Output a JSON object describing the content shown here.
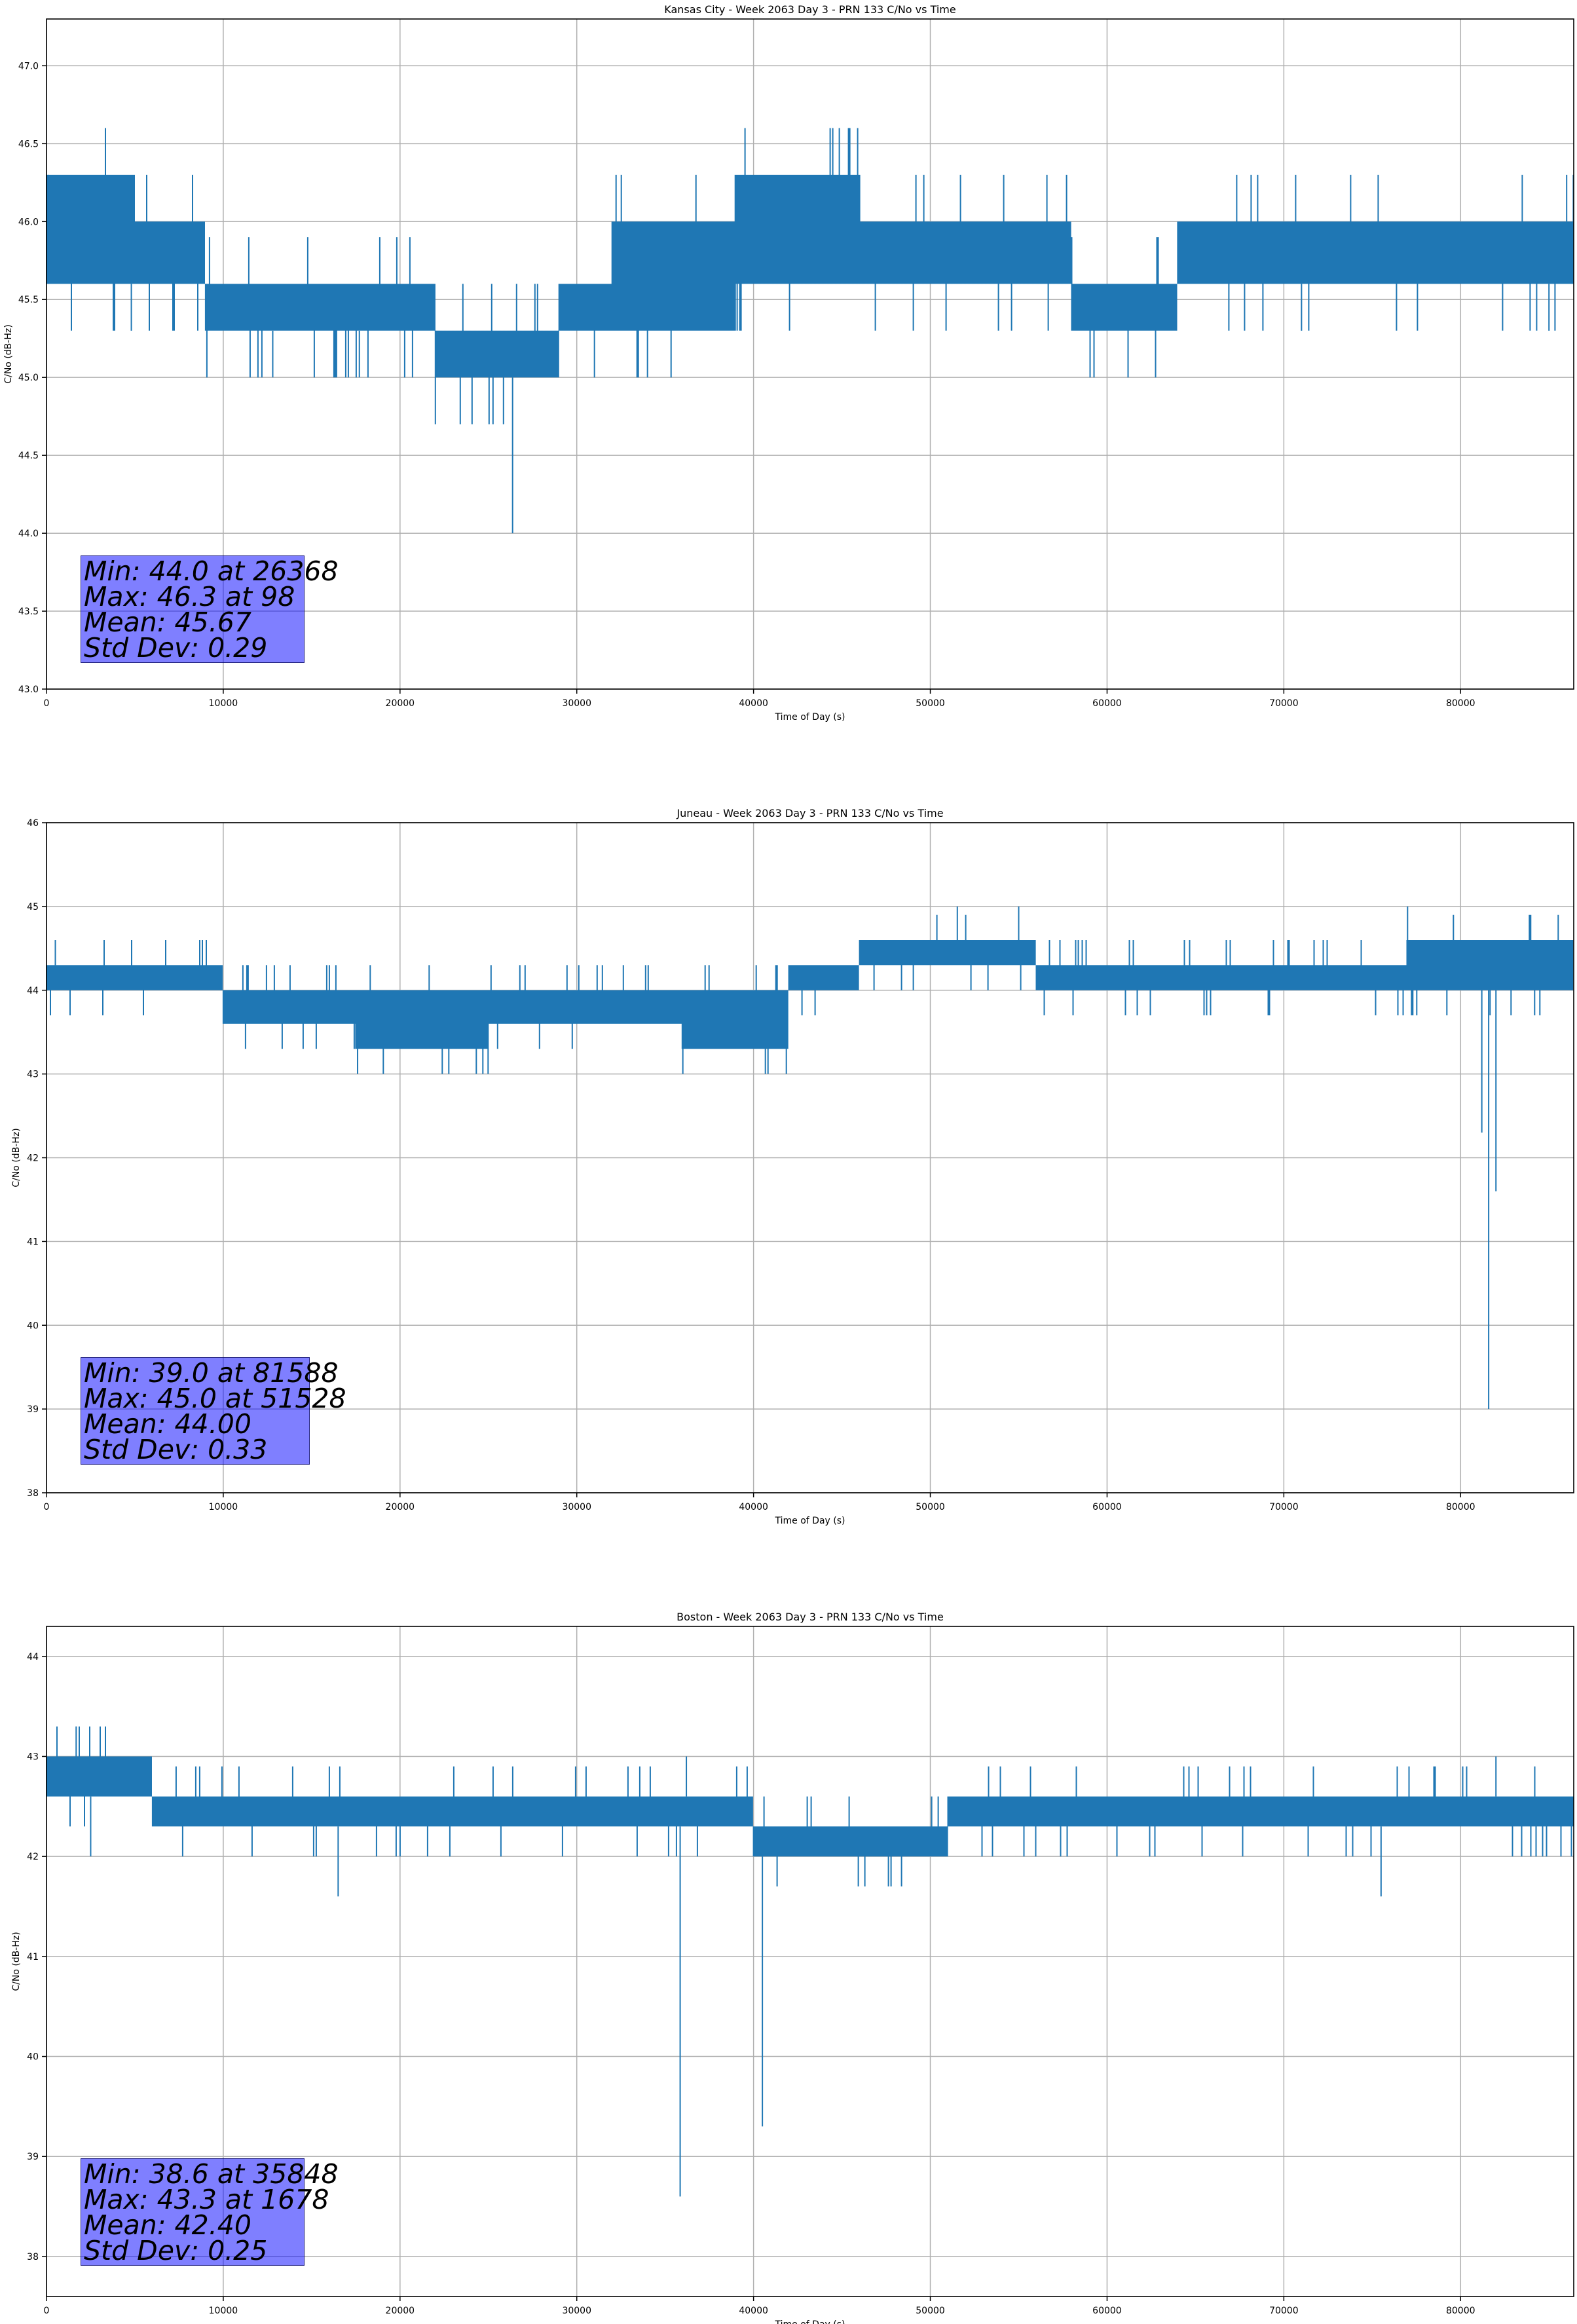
{
  "figure": {
    "colors": {
      "line": "#1f77b4",
      "grid": "#b0b0b0",
      "axes": "#000000",
      "stats_box": "#8080ff"
    }
  },
  "chart_data": [
    {
      "type": "line",
      "title": "Kansas City - Week 2063 Day 3 - PRN 133 C/No vs Time",
      "xlabel": "Time of Day (s)",
      "ylabel": "C/No (dB-Hz)",
      "xlim": [
        0,
        86400
      ],
      "ylim": [
        43.0,
        47.3
      ],
      "xticks": [
        "0",
        "10000",
        "20000",
        "30000",
        "40000",
        "50000",
        "60000",
        "70000",
        "80000"
      ],
      "xtick_values": [
        0,
        10000,
        20000,
        30000,
        40000,
        50000,
        60000,
        70000,
        80000
      ],
      "yticks": [
        "43.0",
        "43.5",
        "44.0",
        "44.5",
        "45.0",
        "45.5",
        "46.0",
        "46.5",
        "47.0"
      ],
      "ytick_values": [
        43.0,
        43.5,
        44.0,
        44.5,
        45.0,
        45.5,
        46.0,
        46.5,
        47.0
      ],
      "grid": true,
      "series": [
        {
          "color": "#1f77b4",
          "segments": [
            {
              "x0": 0,
              "x1": 5000,
              "low": 45.6,
              "high": 46.3
            },
            {
              "x0": 5000,
              "x1": 9000,
              "low": 45.6,
              "high": 46.0
            },
            {
              "x0": 9000,
              "x1": 22000,
              "low": 45.3,
              "high": 45.6
            },
            {
              "x0": 22000,
              "x1": 29000,
              "low": 45.0,
              "high": 45.3
            },
            {
              "x0": 29000,
              "x1": 32000,
              "low": 45.3,
              "high": 45.6
            },
            {
              "x0": 32000,
              "x1": 39000,
              "low": 45.3,
              "high": 46.0
            },
            {
              "x0": 39000,
              "x1": 46000,
              "low": 45.6,
              "high": 46.3
            },
            {
              "x0": 46000,
              "x1": 58000,
              "low": 45.6,
              "high": 46.0
            },
            {
              "x0": 58000,
              "x1": 64000,
              "low": 45.3,
              "high": 45.6
            },
            {
              "x0": 64000,
              "x1": 86400,
              "low": 45.6,
              "high": 46.0
            }
          ],
          "spikes": [
            {
              "x": 98,
              "y": 46.3
            },
            {
              "x": 4800,
              "y": 45.3
            },
            {
              "x": 12800,
              "y": 45.0
            },
            {
              "x": 17700,
              "y": 45.0
            },
            {
              "x": 26368,
              "y": 44.0
            },
            {
              "x": 37000,
              "y": 45.3
            },
            {
              "x": 71000,
              "y": 45.3
            },
            {
              "x": 85000,
              "y": 45.3
            },
            {
              "x": 86000,
              "y": 46.3
            }
          ]
        }
      ],
      "stats": [
        "Min: 44.0 at 26368",
        "Max: 46.3 at 98",
        "Mean: 45.67",
        "Std Dev: 0.29"
      ]
    },
    {
      "type": "line",
      "title": "Juneau - Week 2063 Day 3 - PRN 133 C/No vs Time",
      "xlabel": "Time of Day (s)",
      "ylabel": "C/No (dB-Hz)",
      "xlim": [
        0,
        86400
      ],
      "ylim": [
        38.0,
        46.0
      ],
      "xticks": [
        "0",
        "10000",
        "20000",
        "30000",
        "40000",
        "50000",
        "60000",
        "70000",
        "80000"
      ],
      "xtick_values": [
        0,
        10000,
        20000,
        30000,
        40000,
        50000,
        60000,
        70000,
        80000
      ],
      "yticks": [
        "38",
        "39",
        "40",
        "41",
        "42",
        "43",
        "44",
        "45",
        "46"
      ],
      "ytick_values": [
        38,
        39,
        40,
        41,
        42,
        43,
        44,
        45,
        46
      ],
      "grid": true,
      "series": [
        {
          "color": "#1f77b4",
          "segments": [
            {
              "x0": 0,
              "x1": 10000,
              "low": 44.0,
              "high": 44.3
            },
            {
              "x0": 10000,
              "x1": 17500,
              "low": 43.6,
              "high": 44.0
            },
            {
              "x0": 17500,
              "x1": 25000,
              "low": 43.3,
              "high": 44.0
            },
            {
              "x0": 25000,
              "x1": 36000,
              "low": 43.6,
              "high": 44.0
            },
            {
              "x0": 36000,
              "x1": 42000,
              "low": 43.3,
              "high": 44.0
            },
            {
              "x0": 42000,
              "x1": 46000,
              "low": 44.0,
              "high": 44.3
            },
            {
              "x0": 46000,
              "x1": 56000,
              "low": 44.3,
              "high": 44.6
            },
            {
              "x0": 56000,
              "x1": 77000,
              "low": 44.0,
              "high": 44.3
            },
            {
              "x0": 77000,
              "x1": 86400,
              "low": 44.0,
              "high": 44.6
            }
          ],
          "spikes": [
            {
              "x": 500,
              "y": 44.6
            },
            {
              "x": 17600,
              "y": 43.0
            },
            {
              "x": 36000,
              "y": 43.0
            },
            {
              "x": 51528,
              "y": 45.0
            },
            {
              "x": 55000,
              "y": 45.0
            },
            {
              "x": 81200,
              "y": 42.3
            },
            {
              "x": 81588,
              "y": 39.0
            },
            {
              "x": 82000,
              "y": 41.6
            },
            {
              "x": 77000,
              "y": 45.0
            }
          ]
        }
      ],
      "stats": [
        "Min: 39.0 at 81588",
        "Max: 45.0 at 51528",
        "Mean: 44.00",
        "Std Dev: 0.33"
      ]
    },
    {
      "type": "line",
      "title": "Boston - Week 2063 Day 3 - PRN 133 C/No vs Time",
      "xlabel": "Time of Day (s)",
      "ylabel": "C/No (dB-Hz)",
      "xlim": [
        0,
        86400
      ],
      "ylim": [
        37.6,
        44.3
      ],
      "xticks": [
        "0",
        "10000",
        "20000",
        "30000",
        "40000",
        "50000",
        "60000",
        "70000",
        "80000"
      ],
      "xtick_values": [
        0,
        10000,
        20000,
        30000,
        40000,
        50000,
        60000,
        70000,
        80000
      ],
      "yticks": [
        "38",
        "39",
        "40",
        "41",
        "42",
        "43",
        "44"
      ],
      "ytick_values": [
        38,
        39,
        40,
        41,
        42,
        43,
        44
      ],
      "grid": true,
      "series": [
        {
          "color": "#1f77b4",
          "segments": [
            {
              "x0": 0,
              "x1": 6000,
              "low": 42.6,
              "high": 43.0
            },
            {
              "x0": 6000,
              "x1": 40000,
              "low": 42.3,
              "high": 42.6
            },
            {
              "x0": 40000,
              "x1": 51000,
              "low": 42.0,
              "high": 42.3
            },
            {
              "x0": 51000,
              "x1": 86400,
              "low": 42.3,
              "high": 42.6
            }
          ],
          "spikes": [
            {
              "x": 1678,
              "y": 43.3
            },
            {
              "x": 2500,
              "y": 42.0
            },
            {
              "x": 16500,
              "y": 41.6
            },
            {
              "x": 35848,
              "y": 38.6
            },
            {
              "x": 40500,
              "y": 39.3
            },
            {
              "x": 75500,
              "y": 41.6
            },
            {
              "x": 36200,
              "y": 43.0
            },
            {
              "x": 82000,
              "y": 43.0
            }
          ]
        }
      ],
      "stats": [
        "Min: 38.6 at 35848",
        "Max: 43.3 at 1678",
        "Mean: 42.40",
        "Std Dev: 0.25"
      ]
    }
  ]
}
